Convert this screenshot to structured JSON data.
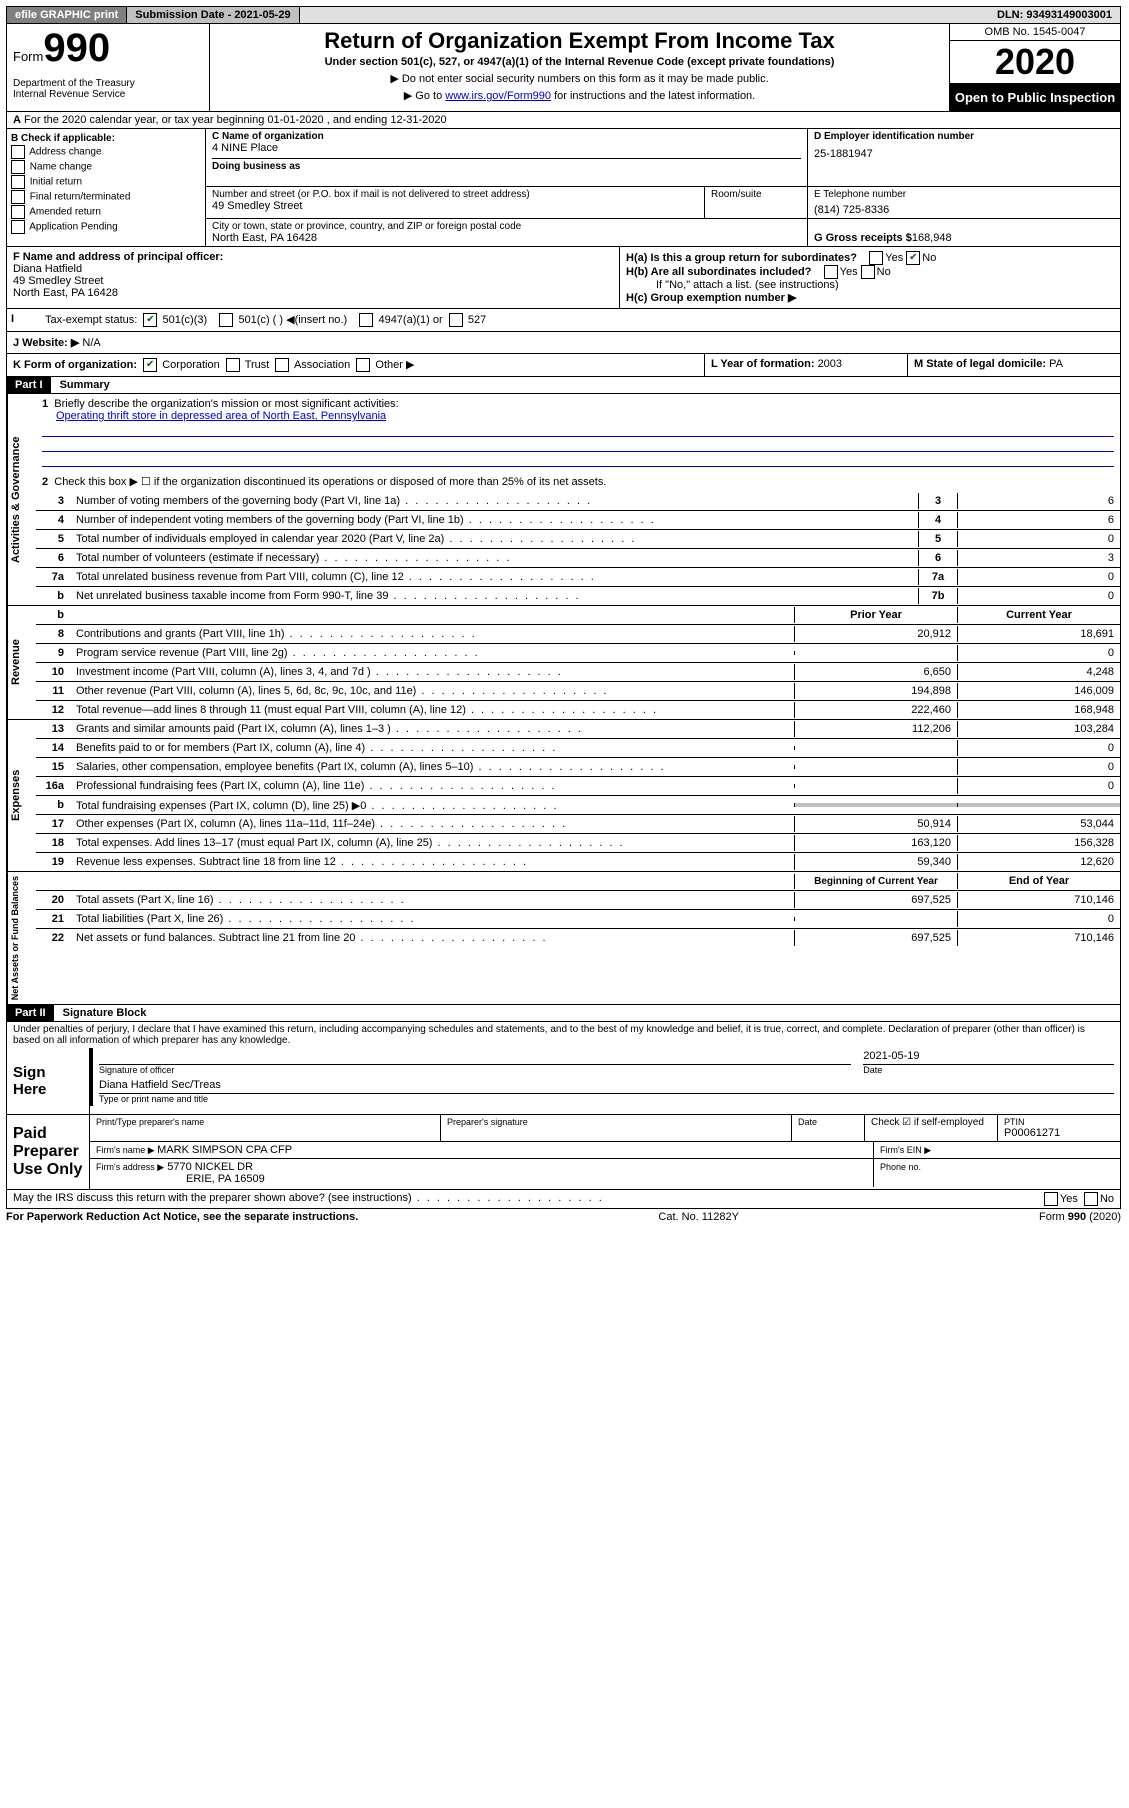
{
  "topbar": {
    "efile": "efile GRAPHIC print",
    "submission": "Submission Date - 2021-05-29",
    "dln": "DLN: 93493149003001"
  },
  "header": {
    "form_label": "Form",
    "form_number": "990",
    "title": "Return of Organization Exempt From Income Tax",
    "subtitle": "Under section 501(c), 527, or 4947(a)(1) of the Internal Revenue Code (except private foundations)",
    "note1": "▶ Do not enter social security numbers on this form as it may be made public.",
    "note2_prefix": "▶ Go to ",
    "note2_link": "www.irs.gov/Form990",
    "note2_suffix": " for instructions and the latest information.",
    "dept": "Department of the Treasury\nInternal Revenue Service",
    "omb": "OMB No. 1545-0047",
    "year": "2020",
    "open_public": "Open to Public Inspection"
  },
  "lineA": "For the 2020 calendar year, or tax year beginning 01-01-2020    , and ending 12-31-2020",
  "boxB": {
    "label": "B Check if applicable:",
    "items": [
      "Address change",
      "Name change",
      "Initial return",
      "Final return/terminated",
      "Amended return",
      "Application Pending"
    ]
  },
  "boxC": {
    "name_label": "C Name of organization",
    "name": "4 NINE Place",
    "dba_label": "Doing business as",
    "street_label": "Number and street (or P.O. box if mail is not delivered to street address)",
    "room_label": "Room/suite",
    "street": "49 Smedley Street",
    "city_label": "City or town, state or province, country, and ZIP or foreign postal code",
    "city": "North East, PA  16428"
  },
  "boxD": {
    "label": "D Employer identification number",
    "value": "25-1881947"
  },
  "boxE": {
    "label": "E Telephone number",
    "value": "(814) 725-8336"
  },
  "boxG": {
    "label": "G Gross receipts $ ",
    "value": "168,948"
  },
  "boxF": {
    "label": "F  Name and address of principal officer:",
    "name": "Diana Hatfield",
    "street": "49 Smedley Street",
    "city": "North East, PA  16428"
  },
  "boxH": {
    "a_label": "H(a)  Is this a group return for subordinates?",
    "b_label": "H(b)  Are all subordinates included?",
    "b_note": "If \"No,\" attach a list. (see instructions)",
    "c_label": "H(c)  Group exemption number ▶"
  },
  "taxStatus": {
    "label": "Tax-exempt status:",
    "opts": [
      "501(c)(3)",
      "501(c) (  ) ◀(insert no.)",
      "4947(a)(1) or",
      "527"
    ]
  },
  "boxI": "I",
  "boxJ": {
    "label": "J    Website: ▶",
    "value": "  N/A"
  },
  "boxK": {
    "label": "K Form of organization:",
    "opts": [
      "Corporation",
      "Trust",
      "Association",
      "Other ▶"
    ]
  },
  "boxL": {
    "label": "L Year of formation: ",
    "value": "2003"
  },
  "boxM": {
    "label": "M State of legal domicile: ",
    "value": "PA"
  },
  "part1": {
    "header": "Part I",
    "title": "Summary",
    "l1_label": "1",
    "l1_text": "Briefly describe the organization's mission or most significant activities:",
    "l1_mission": "Operating thrift store in depressed area of North East, Pennsylvania",
    "l2_label": "2",
    "l2_text": "Check this box ▶ ☐  if the organization discontinued its operations or disposed of more than 25% of its net assets.",
    "lines_gov": [
      {
        "n": "3",
        "t": "Number of voting members of the governing body (Part VI, line 1a)",
        "b": "3",
        "v": "6"
      },
      {
        "n": "4",
        "t": "Number of independent voting members of the governing body (Part VI, line 1b)",
        "b": "4",
        "v": "6"
      },
      {
        "n": "5",
        "t": "Total number of individuals employed in calendar year 2020 (Part V, line 2a)",
        "b": "5",
        "v": "0"
      },
      {
        "n": "6",
        "t": "Total number of volunteers (estimate if necessary)",
        "b": "6",
        "v": "3"
      },
      {
        "n": "7a",
        "t": "Total unrelated business revenue from Part VIII, column (C), line 12",
        "b": "7a",
        "v": "0"
      },
      {
        "n": "b",
        "t": "Net unrelated business taxable income from Form 990-T, line 39",
        "b": "7b",
        "v": "0"
      }
    ],
    "prior_year": "Prior Year",
    "current_year": "Current Year",
    "lines_rev": [
      {
        "n": "8",
        "t": "Contributions and grants (Part VIII, line 1h)",
        "p": "20,912",
        "c": "18,691"
      },
      {
        "n": "9",
        "t": "Program service revenue (Part VIII, line 2g)",
        "p": "",
        "c": "0"
      },
      {
        "n": "10",
        "t": "Investment income (Part VIII, column (A), lines 3, 4, and 7d )",
        "p": "6,650",
        "c": "4,248"
      },
      {
        "n": "11",
        "t": "Other revenue (Part VIII, column (A), lines 5, 6d, 8c, 9c, 10c, and 11e)",
        "p": "194,898",
        "c": "146,009"
      },
      {
        "n": "12",
        "t": "Total revenue—add lines 8 through 11 (must equal Part VIII, column (A), line 12)",
        "p": "222,460",
        "c": "168,948"
      }
    ],
    "lines_exp": [
      {
        "n": "13",
        "t": "Grants and similar amounts paid (Part IX, column (A), lines 1–3 )",
        "p": "112,206",
        "c": "103,284"
      },
      {
        "n": "14",
        "t": "Benefits paid to or for members (Part IX, column (A), line 4)",
        "p": "",
        "c": "0"
      },
      {
        "n": "15",
        "t": "Salaries, other compensation, employee benefits (Part IX, column (A), lines 5–10)",
        "p": "",
        "c": "0"
      },
      {
        "n": "16a",
        "t": "Professional fundraising fees (Part IX, column (A), line 11e)",
        "p": "",
        "c": "0"
      },
      {
        "n": "b",
        "t": "Total fundraising expenses (Part IX, column (D), line 25) ▶0",
        "p": "SHADE",
        "c": "SHADE"
      },
      {
        "n": "17",
        "t": "Other expenses (Part IX, column (A), lines 11a–11d, 11f–24e)",
        "p": "50,914",
        "c": "53,044"
      },
      {
        "n": "18",
        "t": "Total expenses. Add lines 13–17 (must equal Part IX, column (A), line 25)",
        "p": "163,120",
        "c": "156,328"
      },
      {
        "n": "19",
        "t": "Revenue less expenses. Subtract line 18 from line 12",
        "p": "59,340",
        "c": "12,620"
      }
    ],
    "beg_year": "Beginning of Current Year",
    "end_year": "End of Year",
    "lines_net": [
      {
        "n": "20",
        "t": "Total assets (Part X, line 16)",
        "p": "697,525",
        "c": "710,146"
      },
      {
        "n": "21",
        "t": "Total liabilities (Part X, line 26)",
        "p": "",
        "c": "0"
      },
      {
        "n": "22",
        "t": "Net assets or fund balances. Subtract line 21 from line 20",
        "p": "697,525",
        "c": "710,146"
      }
    ],
    "vlabels": {
      "gov": "Activities & Governance",
      "rev": "Revenue",
      "exp": "Expenses",
      "net": "Net Assets or Fund Balances"
    }
  },
  "part2": {
    "header": "Part II",
    "title": "Signature Block",
    "declaration": "Under penalties of perjury, I declare that I have examined this return, including accompanying schedules and statements, and to the best of my knowledge and belief, it is true, correct, and complete. Declaration of preparer (other than officer) is based on all information of which preparer has any knowledge.",
    "sign_here": "Sign Here",
    "sig_officer": "Signature of officer",
    "sig_date": "2021-05-19",
    "date_label": "Date",
    "officer_name": "Diana Hatfield  Sec/Treas",
    "type_label": "Type or print name and title",
    "paid_preparer": "Paid Preparer Use Only",
    "prep_name_label": "Print/Type preparer's name",
    "prep_sig_label": "Preparer's signature",
    "prep_date_label": "Date",
    "prep_check": "Check ☑ if self-employed",
    "ptin_label": "PTIN",
    "ptin": "P00061271",
    "firm_name_label": "Firm's name    ▶ ",
    "firm_name": "MARK SIMPSON CPA CFP",
    "firm_ein_label": "Firm's EIN ▶",
    "firm_addr_label": "Firm's address ▶",
    "firm_addr": "5770 NICKEL DR",
    "firm_city": "ERIE, PA  16509",
    "phone_label": "Phone no."
  },
  "footer": {
    "discuss": "May the IRS discuss this return with the preparer shown above? (see instructions)",
    "paperwork": "For Paperwork Reduction Act Notice, see the separate instructions.",
    "cat": "Cat. No. 11282Y",
    "form": "Form 990 (2020)"
  }
}
